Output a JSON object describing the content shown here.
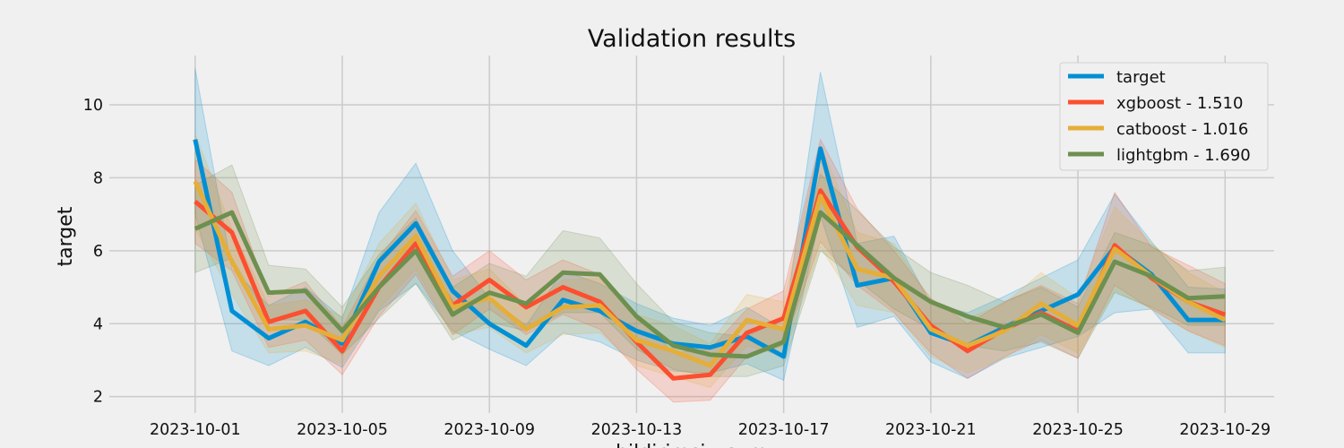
{
  "chart_data": {
    "type": "line",
    "title": "Validation results",
    "xlabel": "bildirimsiz_sum",
    "ylabel": "target",
    "ylim": [
      1.55,
      11.35
    ],
    "xlim": [
      "2023-09-28T16:00",
      "2023-10-30T08:00"
    ],
    "x_tick_labels": [
      "2023-10-01",
      "2023-10-05",
      "2023-10-09",
      "2023-10-13",
      "2023-10-17",
      "2023-10-21",
      "2023-10-25",
      "2023-10-29"
    ],
    "y_ticks": [
      2,
      4,
      6,
      8,
      10
    ],
    "grid": true,
    "legend_position": "top-right",
    "x": [
      "2023-10-01",
      "2023-10-02",
      "2023-10-03",
      "2023-10-04",
      "2023-10-05",
      "2023-10-06",
      "2023-10-07",
      "2023-10-08",
      "2023-10-09",
      "2023-10-10",
      "2023-10-11",
      "2023-10-12",
      "2023-10-13",
      "2023-10-14",
      "2023-10-15",
      "2023-10-16",
      "2023-10-17",
      "2023-10-18",
      "2023-10-19",
      "2023-10-20",
      "2023-10-21",
      "2023-10-22",
      "2023-10-23",
      "2023-10-24",
      "2023-10-25",
      "2023-10-26",
      "2023-10-27",
      "2023-10-28",
      "2023-10-29"
    ],
    "series": [
      {
        "name": "target",
        "color": "#008fd5",
        "values": [
          9.05,
          4.35,
          3.6,
          4.05,
          3.45,
          5.7,
          6.75,
          4.9,
          4.0,
          3.4,
          4.65,
          4.35,
          3.8,
          3.45,
          3.35,
          3.65,
          3.1,
          8.8,
          5.05,
          5.25,
          3.75,
          3.4,
          3.9,
          4.35,
          4.8,
          6.1,
          5.35,
          4.1,
          4.1
        ],
        "lower": [
          7.0,
          3.25,
          2.85,
          3.35,
          2.8,
          4.35,
          5.1,
          3.8,
          3.3,
          2.85,
          3.75,
          3.5,
          3.0,
          2.7,
          2.65,
          2.9,
          2.45,
          6.95,
          3.9,
          4.2,
          2.95,
          2.5,
          3.05,
          3.35,
          3.65,
          4.3,
          4.4,
          3.2,
          3.2
        ],
        "upper": [
          11.0,
          5.5,
          4.5,
          5.0,
          4.15,
          7.05,
          8.4,
          6.0,
          4.7,
          3.95,
          5.45,
          5.1,
          4.55,
          4.15,
          3.95,
          4.45,
          3.85,
          10.9,
          6.2,
          6.4,
          4.55,
          4.3,
          4.75,
          5.25,
          5.75,
          7.55,
          6.25,
          5.0,
          4.95
        ]
      },
      {
        "name": "xgboost - 1.510",
        "color": "#fc4f30",
        "values": [
          7.35,
          6.5,
          4.05,
          4.35,
          3.25,
          5.0,
          6.2,
          4.5,
          5.2,
          4.45,
          5.0,
          4.6,
          3.5,
          2.5,
          2.6,
          3.75,
          4.15,
          7.65,
          6.1,
          5.15,
          3.95,
          3.25,
          3.85,
          4.3,
          3.8,
          6.15,
          5.25,
          4.6,
          4.25
        ],
        "lower": [
          6.2,
          5.45,
          3.35,
          3.55,
          2.6,
          4.2,
          5.35,
          3.7,
          4.4,
          3.7,
          4.25,
          3.85,
          2.75,
          1.85,
          1.9,
          3.1,
          3.4,
          6.25,
          5.05,
          4.3,
          3.2,
          2.5,
          3.1,
          3.55,
          3.05,
          5.05,
          4.4,
          3.8,
          3.4
        ],
        "upper": [
          8.5,
          7.6,
          4.75,
          5.15,
          3.9,
          5.8,
          7.1,
          5.3,
          6.0,
          5.2,
          5.75,
          5.35,
          4.25,
          3.2,
          3.3,
          4.4,
          4.9,
          9.05,
          7.15,
          6.0,
          4.7,
          4.0,
          4.6,
          5.05,
          4.55,
          7.6,
          6.1,
          5.6,
          5.1
        ]
      },
      {
        "name": "catboost - 1.016",
        "color": "#e5ae38",
        "values": [
          7.9,
          5.7,
          3.85,
          3.95,
          3.55,
          5.3,
          6.4,
          4.45,
          4.7,
          3.85,
          4.45,
          4.5,
          3.55,
          3.25,
          2.85,
          4.1,
          3.85,
          7.5,
          5.5,
          5.25,
          3.85,
          3.4,
          3.8,
          4.55,
          3.95,
          6.05,
          5.3,
          4.6,
          4.1
        ],
        "lower": [
          6.6,
          4.8,
          3.2,
          3.25,
          2.9,
          4.4,
          5.5,
          3.7,
          3.9,
          3.2,
          3.7,
          3.75,
          2.85,
          2.55,
          2.25,
          3.4,
          3.1,
          6.1,
          4.5,
          4.3,
          3.1,
          2.65,
          3.05,
          3.7,
          3.2,
          4.9,
          4.4,
          3.8,
          3.35
        ],
        "upper": [
          9.2,
          6.6,
          4.5,
          4.65,
          4.2,
          6.2,
          7.3,
          5.2,
          5.5,
          4.5,
          5.2,
          5.25,
          4.25,
          3.95,
          3.45,
          4.8,
          4.6,
          8.9,
          6.5,
          6.2,
          4.6,
          4.15,
          4.55,
          5.4,
          4.7,
          7.2,
          6.2,
          5.4,
          4.85
        ]
      },
      {
        "name": "lightgbm - 1.690",
        "color": "#6d904f",
        "values": [
          6.6,
          7.05,
          4.85,
          4.9,
          3.8,
          5.0,
          6.0,
          4.25,
          4.85,
          4.55,
          5.4,
          5.35,
          4.2,
          3.4,
          3.15,
          3.1,
          3.5,
          7.05,
          6.15,
          5.25,
          4.6,
          4.2,
          3.9,
          4.25,
          3.75,
          5.7,
          5.3,
          4.7,
          4.75
        ],
        "lower": [
          5.4,
          5.8,
          4.1,
          4.1,
          3.15,
          4.15,
          5.1,
          3.55,
          4.05,
          3.8,
          4.3,
          4.3,
          3.3,
          2.75,
          2.55,
          2.55,
          2.85,
          6.0,
          5.2,
          4.4,
          3.85,
          3.4,
          3.25,
          3.5,
          3.05,
          4.85,
          4.45,
          3.95,
          3.95
        ],
        "upper": [
          7.8,
          8.35,
          5.6,
          5.5,
          4.45,
          5.9,
          6.9,
          5.0,
          5.65,
          5.3,
          6.55,
          6.35,
          5.1,
          4.05,
          3.75,
          3.65,
          4.15,
          8.1,
          7.1,
          6.1,
          5.4,
          5.05,
          4.6,
          5.0,
          4.45,
          6.5,
          6.15,
          5.45,
          5.55
        ]
      }
    ]
  }
}
